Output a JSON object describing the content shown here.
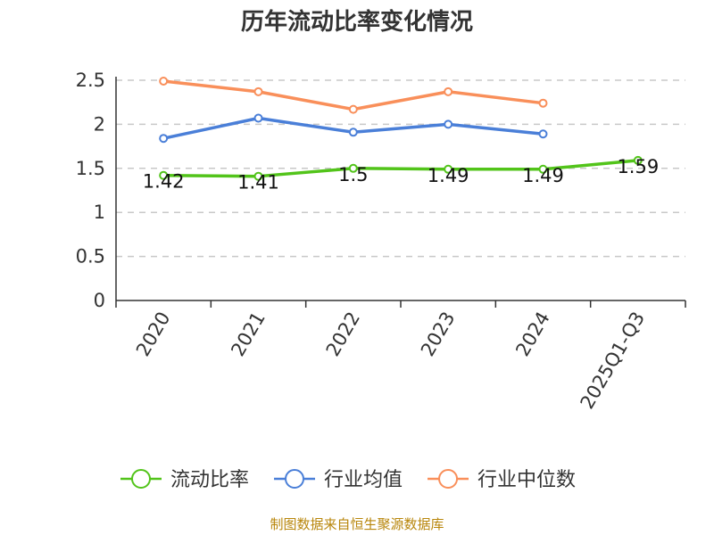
{
  "chart_data": {
    "type": "line",
    "title": "历年流动比率变化情况",
    "xlabel": "",
    "ylabel": "",
    "categories": [
      "2020",
      "2021",
      "2022",
      "2023",
      "2024",
      "2025Q1-Q3"
    ],
    "ylim": [
      0,
      2.5
    ],
    "yticks": [
      "0",
      "0.5",
      "1",
      "1.5",
      "2",
      "2.5"
    ],
    "grid": true,
    "legend_position": "bottom",
    "series": [
      {
        "name": "流动比率",
        "color": "#52c41a",
        "values": [
          1.42,
          1.41,
          1.5,
          1.49,
          1.49,
          1.59
        ],
        "labels": [
          "1.42",
          "1.41",
          "1.5",
          "1.49",
          "1.49",
          "1.59"
        ]
      },
      {
        "name": "行业均值",
        "color": "#4a7fd8",
        "values": [
          1.84,
          2.07,
          1.91,
          2.0,
          1.89,
          null
        ]
      },
      {
        "name": "行业中位数",
        "color": "#f98f5a",
        "values": [
          2.49,
          2.37,
          2.17,
          2.37,
          2.24,
          null
        ]
      }
    ]
  },
  "source": "制图数据来自恒生聚源数据库"
}
